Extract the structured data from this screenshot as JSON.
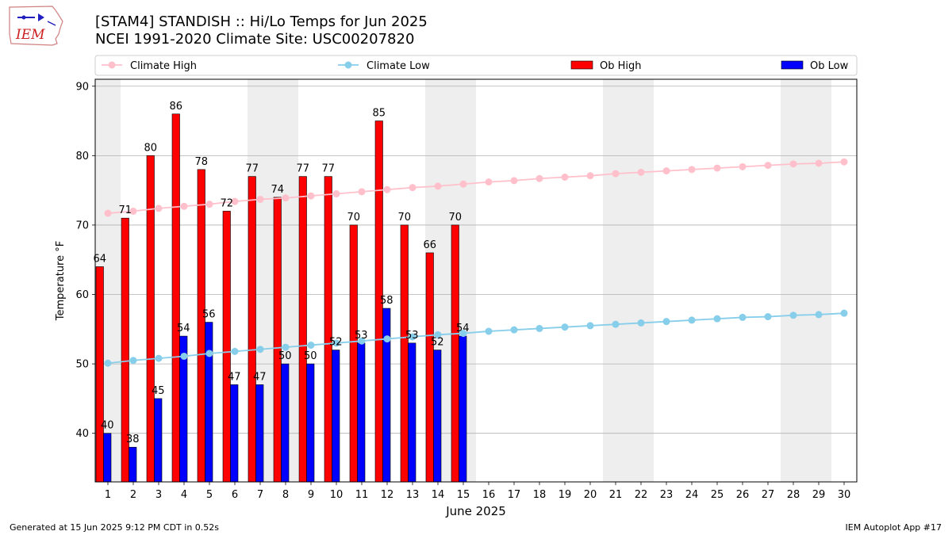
{
  "header": {
    "title": "[STAM4] STANDISH :: Hi/Lo Temps for Jun 2025",
    "subtitle": "NCEI 1991-2020 Climate Site: USC00207820",
    "logo_text": "IEM"
  },
  "footer": {
    "generated": "Generated at 15 Jun 2025 9:12 PM CDT in 0.52s",
    "app": "IEM Autoplot App #17"
  },
  "colors": {
    "ob_high": "#ff0000",
    "ob_low": "#0000ff",
    "climate_high": "#ffc0cb",
    "climate_low": "#87ceeb",
    "weekend_band": "#eeeeee",
    "grid": "#b0b0b0"
  },
  "chart_data": {
    "type": "bar",
    "xlabel": "June 2025",
    "ylabel": "Temperature °F",
    "ylim": [
      33,
      91
    ],
    "yticks": [
      40,
      50,
      60,
      70,
      80,
      90
    ],
    "grid": "horizontal",
    "legend_position": "top, above plot, 4 columns",
    "categories": [
      "1",
      "2",
      "3",
      "4",
      "5",
      "6",
      "7",
      "8",
      "9",
      "10",
      "11",
      "12",
      "13",
      "14",
      "15",
      "16",
      "17",
      "18",
      "19",
      "20",
      "21",
      "22",
      "23",
      "24",
      "25",
      "26",
      "27",
      "28",
      "29",
      "30"
    ],
    "weekend_days": [
      1,
      7,
      8,
      14,
      15,
      21,
      22,
      28,
      29
    ],
    "series": [
      {
        "name": "Climate High",
        "kind": "line",
        "values": [
          71.7,
          72.0,
          72.4,
          72.7,
          73.0,
          73.4,
          73.7,
          73.9,
          74.2,
          74.5,
          74.8,
          75.1,
          75.4,
          75.6,
          75.9,
          76.2,
          76.4,
          76.7,
          76.9,
          77.1,
          77.4,
          77.6,
          77.8,
          78.0,
          78.2,
          78.4,
          78.6,
          78.8,
          78.9,
          79.1
        ]
      },
      {
        "name": "Climate Low",
        "kind": "line",
        "values": [
          50.1,
          50.5,
          50.8,
          51.1,
          51.5,
          51.8,
          52.1,
          52.4,
          52.7,
          53.0,
          53.3,
          53.6,
          53.9,
          54.2,
          54.4,
          54.7,
          54.9,
          55.1,
          55.3,
          55.5,
          55.7,
          55.9,
          56.1,
          56.3,
          56.5,
          56.7,
          56.8,
          57.0,
          57.1,
          57.3
        ]
      },
      {
        "name": "Ob High",
        "kind": "bar",
        "values": [
          64,
          71,
          80,
          86,
          78,
          72,
          77,
          74,
          77,
          77,
          70,
          85,
          70,
          66,
          70,
          null,
          null,
          null,
          null,
          null,
          null,
          null,
          null,
          null,
          null,
          null,
          null,
          null,
          null,
          null
        ]
      },
      {
        "name": "Ob Low",
        "kind": "bar",
        "values": [
          40,
          38,
          45,
          54,
          56,
          47,
          47,
          50,
          50,
          52,
          53,
          58,
          53,
          52,
          54,
          null,
          null,
          null,
          null,
          null,
          null,
          null,
          null,
          null,
          null,
          null,
          null,
          null,
          null,
          null
        ]
      }
    ]
  }
}
